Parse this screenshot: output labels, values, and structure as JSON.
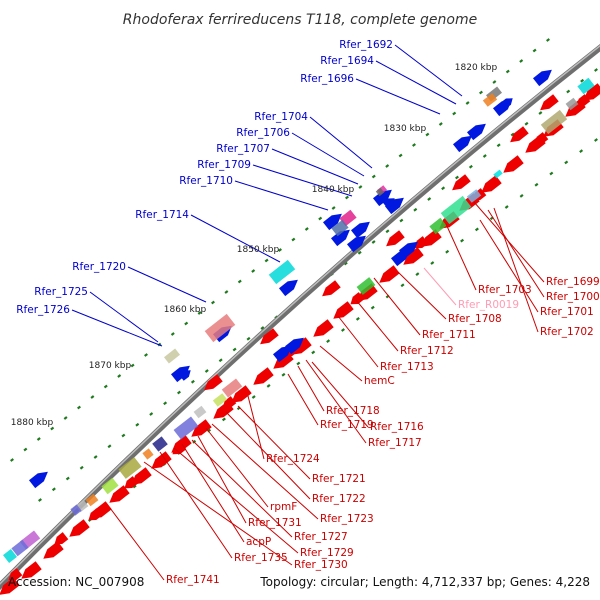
{
  "title": "Rhodoferax ferrireducens T118, complete genome",
  "footer": {
    "accession": "Accession: NC_007908",
    "summary": "Topology: circular; Length: 4,712,337 bp; Genes: 4,228"
  },
  "colors": {
    "backbone": "#7a7a7a",
    "plus_label": "#0000cc",
    "minus_label": "#cc0000",
    "rna_label": "#ff9cb4",
    "plus_gene": "#0018e0",
    "minus_gene": "#ee0000",
    "tick": "#1e7a1e"
  },
  "kbp_marks": [
    "1820 kbp",
    "1830 kbp",
    "1840 kbp",
    "1850 kbp",
    "1860 kbp",
    "1870 kbp",
    "1880 kbp"
  ],
  "plus_labels": [
    "Rfer_1692",
    "Rfer_1694",
    "Rfer_1696",
    "Rfer_1704",
    "Rfer_1706",
    "Rfer_1707",
    "Rfer_1709",
    "Rfer_1710",
    "Rfer_1714",
    "Rfer_1720",
    "Rfer_1725",
    "Rfer_1726"
  ],
  "minus_labels": [
    "Rfer_1699",
    "Rfer_1700",
    "Rfer_1703",
    "Rfer_1701",
    "Rfer_1702",
    "Rfer_1708",
    "Rfer_1711",
    "Rfer_1712",
    "Rfer_1713",
    "hemC",
    "Rfer_1718",
    "Rfer_1716",
    "Rfer_1719",
    "Rfer_1717",
    "Rfer_1724",
    "Rfer_1721",
    "Rfer_1722",
    "Rfer_1723",
    "rpmF",
    "Rfer_1731",
    "Rfer_1727",
    "acpP",
    "Rfer_1729",
    "Rfer_1735",
    "Rfer_1730",
    "Rfer_1741"
  ],
  "rna_labels": [
    "Rfer_R0019"
  ]
}
